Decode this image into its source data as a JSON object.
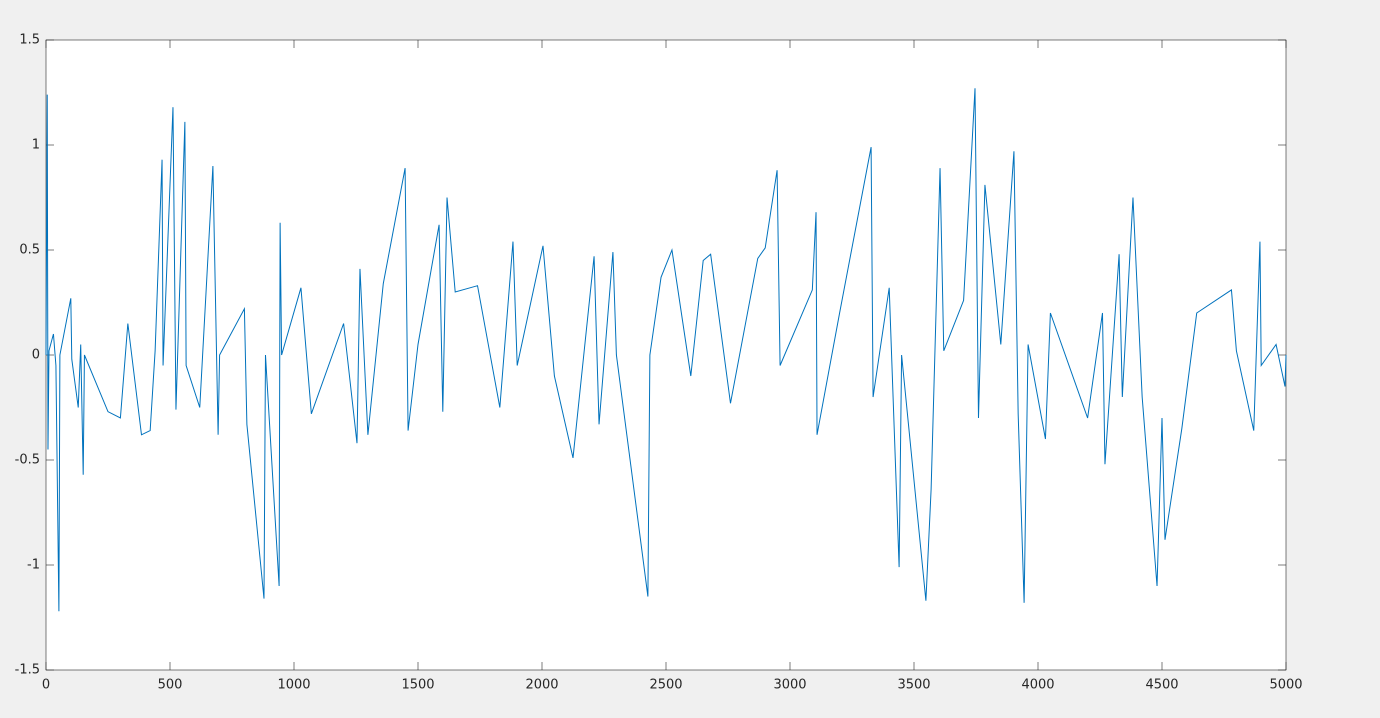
{
  "chart_data": {
    "type": "line",
    "x": [
      0,
      5,
      8,
      12,
      30,
      40,
      52,
      56,
      100,
      104,
      130,
      140,
      150,
      155,
      250,
      300,
      330,
      385,
      420,
      440,
      468,
      472,
      512,
      524,
      560,
      565,
      620,
      673,
      694,
      700,
      800,
      810,
      879,
      885,
      940,
      944,
      950,
      1028,
      1070,
      1200,
      1254,
      1266,
      1298,
      1360,
      1448,
      1460,
      1500,
      1585,
      1600,
      1617,
      1650,
      1740,
      1830,
      1883,
      1900,
      2004,
      2050,
      2125,
      2210,
      2230,
      2286,
      2300,
      2427,
      2435,
      2480,
      2524,
      2600,
      2650,
      2680,
      2760,
      2870,
      2900,
      2948,
      2960,
      3090,
      3105,
      3109,
      3200,
      3327,
      3335,
      3400,
      3440,
      3450,
      3548,
      3569,
      3605,
      3620,
      3700,
      3746,
      3760,
      3786,
      3850,
      3903,
      3920,
      3944,
      3960,
      4030,
      4050,
      4200,
      4260,
      4270,
      4327,
      4340,
      4383,
      4420,
      4480,
      4500,
      4512,
      4580,
      4640,
      4780,
      4800,
      4870,
      4895,
      4900,
      4960,
      4996,
      5000
    ],
    "values": [
      0,
      1.24,
      -0.45,
      0.02,
      0.1,
      -0.05,
      -1.22,
      0,
      0.27,
      -0.02,
      -0.25,
      0.05,
      -0.57,
      0,
      -0.27,
      -0.3,
      0.15,
      -0.38,
      -0.36,
      0.02,
      0.93,
      -0.05,
      1.18,
      -0.26,
      1.11,
      -0.05,
      -0.25,
      0.9,
      -0.38,
      0,
      0.22,
      -0.33,
      -1.16,
      0,
      -1.1,
      0.63,
      0,
      0.32,
      -0.28,
      0.15,
      -0.42,
      0.41,
      -0.38,
      0.34,
      0.89,
      -0.36,
      0.05,
      0.62,
      -0.27,
      0.75,
      0.3,
      0.33,
      -0.25,
      0.54,
      -0.05,
      0.52,
      -0.1,
      -0.49,
      0.47,
      -0.33,
      0.49,
      0,
      -1.15,
      0,
      0.37,
      0.5,
      -0.1,
      0.45,
      0.48,
      -0.23,
      0.46,
      0.51,
      0.88,
      -0.05,
      0.31,
      0.68,
      -0.38,
      0.2,
      0.99,
      -0.2,
      0.32,
      -1.01,
      0,
      -1.17,
      -0.64,
      0.89,
      0.02,
      0.26,
      1.27,
      -0.3,
      0.81,
      0.05,
      0.97,
      -0.28,
      -1.18,
      0.05,
      -0.4,
      0.2,
      -0.3,
      0.2,
      -0.52,
      0.48,
      -0.2,
      0.75,
      -0.2,
      -1.1,
      -0.3,
      -0.88,
      -0.35,
      0.2,
      0.31,
      0.02,
      -0.36,
      0.54,
      -0.05,
      0.05,
      -0.15,
      0
    ],
    "color": "#0072bd",
    "xlim": [
      0,
      5000
    ],
    "ylim": [
      -1.5,
      1.5
    ],
    "xticks": [
      0,
      500,
      1000,
      1500,
      2000,
      2500,
      3000,
      3500,
      4000,
      4500,
      5000
    ],
    "yticks": [
      -1.5,
      -1,
      -0.5,
      0,
      0.5,
      1,
      1.5
    ]
  }
}
